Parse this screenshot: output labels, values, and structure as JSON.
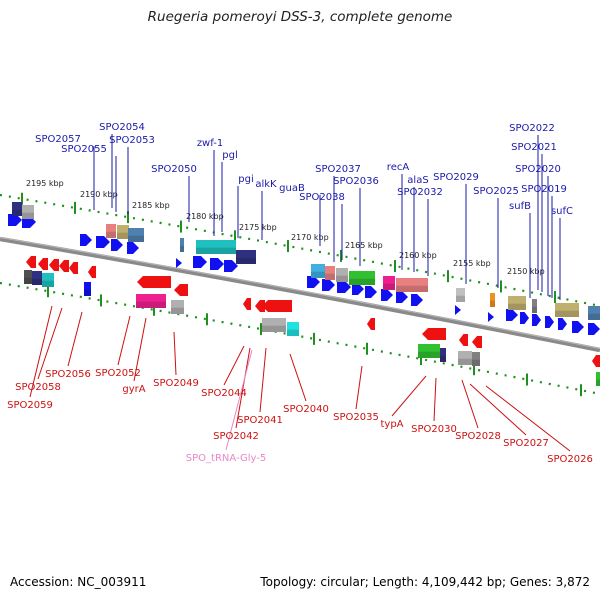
{
  "title": "Ruegeria pomeroyi DSS-3, complete genome",
  "footer": {
    "accession": "Accession: NC_003911",
    "stats": "Topology: circular; Length: 4,109,442 bp; Genes: 3,872"
  },
  "colors": {
    "forward_cds": "#1010f0",
    "reverse_cds": "#ee1111",
    "top_label": "#1a1aaa",
    "bottom_label": "#cc1111",
    "trna_label": "#e888c8",
    "backbone": "#777777",
    "tick": "#1f8f1f"
  },
  "scale_labels": [
    "2195 kbp",
    "2190 kbp",
    "2185 kbp",
    "2180 kbp",
    "2175 kbp",
    "2170 kbp",
    "2165 kbp",
    "2160 kbp",
    "2155 kbp",
    "2150 kbp"
  ],
  "top_genes": [
    "SPO2057",
    "SPO2054",
    "SPO2055",
    "SPO2053",
    "zwf-1",
    "pgl",
    "SPO2050",
    "pgi",
    "alkK",
    "guaB",
    "SPO2037",
    "SPO2038",
    "SPO2036",
    "recA",
    "alaS",
    "SPO2032",
    "SPO2029",
    "SPO2025",
    "SPO2022",
    "SPO2021",
    "SPO2020",
    "SPO2019",
    "sufB",
    "sufC"
  ],
  "bottom_genes": [
    "SPO2056",
    "SPO2058",
    "SPO2059",
    "SPO2052",
    "gyrA",
    "SPO2049",
    "SPO2044",
    "SPO2041",
    "SPO2042",
    "SPO_tRNA-Gly-5",
    "SPO2040",
    "SPO2035",
    "typA",
    "SPO2030",
    "SPO2028",
    "SPO2027",
    "SPO2026"
  ]
}
